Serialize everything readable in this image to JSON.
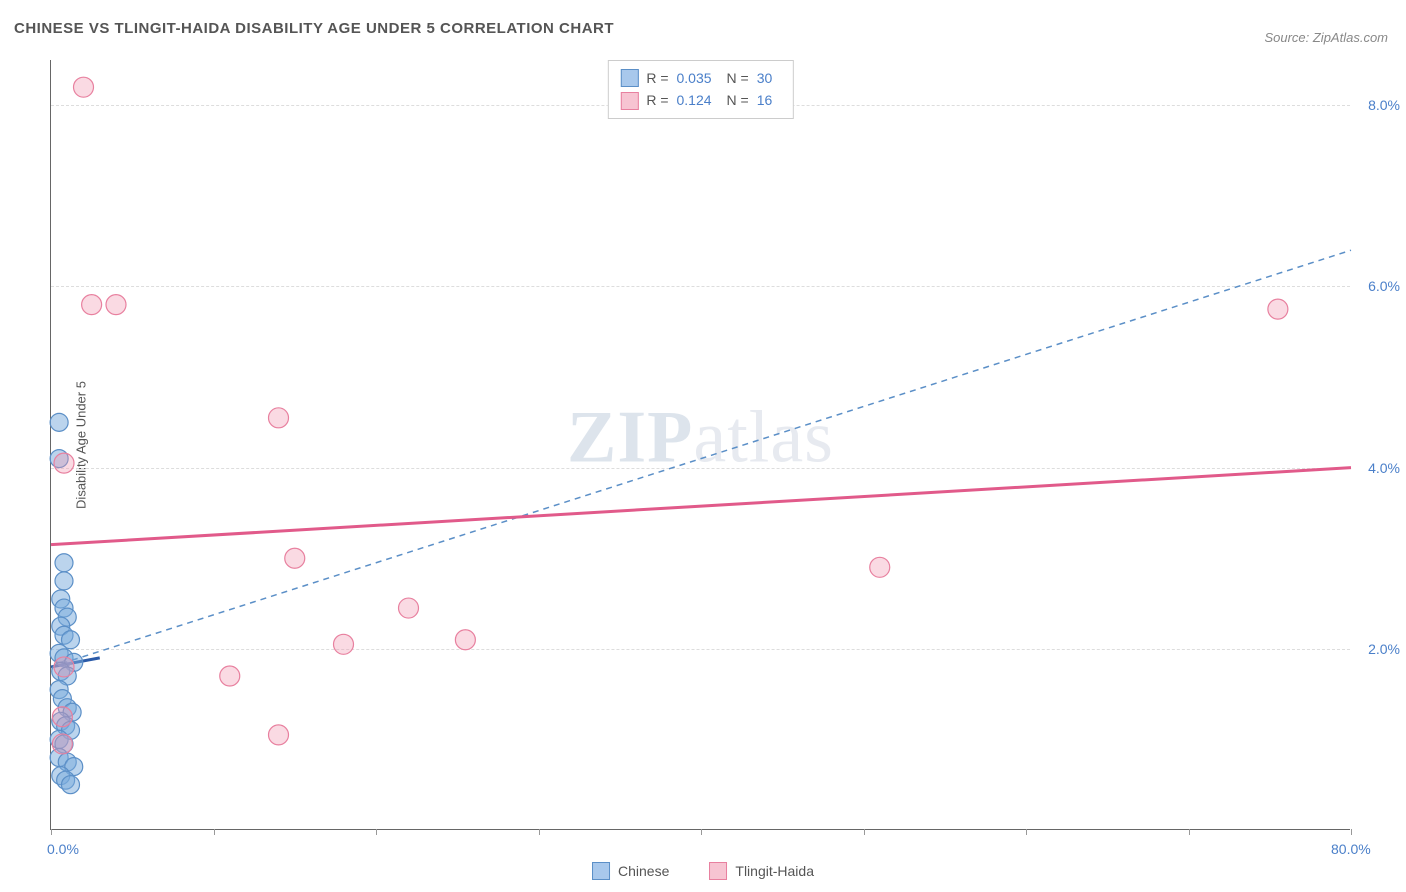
{
  "title": "CHINESE VS TLINGIT-HAIDA DISABILITY AGE UNDER 5 CORRELATION CHART",
  "source": "Source: ZipAtlas.com",
  "watermark": {
    "zip": "ZIP",
    "atlas": "atlas"
  },
  "y_axis_title": "Disability Age Under 5",
  "chart": {
    "type": "scatter",
    "background_color": "#ffffff",
    "grid_color": "#dddddd",
    "xlim": [
      0,
      80
    ],
    "ylim": [
      0,
      8.5
    ],
    "x_ticks": [
      0,
      10,
      20,
      30,
      40,
      50,
      60,
      70,
      80
    ],
    "x_labels": {
      "0": "0.0%",
      "80": "80.0%"
    },
    "y_gridlines": [
      2,
      4,
      6,
      8
    ],
    "y_labels": {
      "2": "2.0%",
      "4": "4.0%",
      "6": "6.0%",
      "8": "8.0%"
    },
    "label_color": "#4a7fc9",
    "label_fontsize": 14,
    "series": [
      {
        "name": "Chinese",
        "marker_fill": "rgba(120,170,220,0.5)",
        "marker_stroke": "#5b8fc7",
        "marker_radius": 9,
        "swatch_fill": "#a8c8ec",
        "swatch_border": "#5b8fc7",
        "trend": {
          "x1": 0,
          "y1": 1.8,
          "x2": 80,
          "y2": 6.4,
          "stroke": "#5b8fc7",
          "dash": "6,5",
          "width": 1.5
        },
        "trend_tail": {
          "x1": 0,
          "y1": 1.8,
          "x2": 3,
          "y2": 1.9,
          "stroke": "#2a5aa8",
          "width": 3
        },
        "stats": {
          "R": "0.035",
          "N": "30"
        },
        "points": [
          {
            "x": 0.5,
            "y": 4.5
          },
          {
            "x": 0.5,
            "y": 4.1
          },
          {
            "x": 0.8,
            "y": 2.95
          },
          {
            "x": 0.8,
            "y": 2.75
          },
          {
            "x": 0.6,
            "y": 2.55
          },
          {
            "x": 0.8,
            "y": 2.45
          },
          {
            "x": 1.0,
            "y": 2.35
          },
          {
            "x": 0.6,
            "y": 2.25
          },
          {
            "x": 0.8,
            "y": 2.15
          },
          {
            "x": 1.2,
            "y": 2.1
          },
          {
            "x": 0.5,
            "y": 1.95
          },
          {
            "x": 0.8,
            "y": 1.9
          },
          {
            "x": 1.4,
            "y": 1.85
          },
          {
            "x": 0.6,
            "y": 1.75
          },
          {
            "x": 1.0,
            "y": 1.7
          },
          {
            "x": 0.5,
            "y": 1.55
          },
          {
            "x": 0.7,
            "y": 1.45
          },
          {
            "x": 1.0,
            "y": 1.35
          },
          {
            "x": 1.3,
            "y": 1.3
          },
          {
            "x": 0.6,
            "y": 1.2
          },
          {
            "x": 0.9,
            "y": 1.15
          },
          {
            "x": 1.2,
            "y": 1.1
          },
          {
            "x": 0.5,
            "y": 1.0
          },
          {
            "x": 0.8,
            "y": 0.95
          },
          {
            "x": 0.5,
            "y": 0.8
          },
          {
            "x": 1.0,
            "y": 0.75
          },
          {
            "x": 1.4,
            "y": 0.7
          },
          {
            "x": 0.6,
            "y": 0.6
          },
          {
            "x": 0.9,
            "y": 0.55
          },
          {
            "x": 1.2,
            "y": 0.5
          }
        ]
      },
      {
        "name": "Tlingit-Haida",
        "marker_fill": "rgba(240,150,175,0.35)",
        "marker_stroke": "#e8809f",
        "marker_radius": 10,
        "swatch_fill": "#f7c4d2",
        "swatch_border": "#e8809f",
        "trend": {
          "x1": 0,
          "y1": 3.15,
          "x2": 80,
          "y2": 4.0,
          "stroke": "#e15a8a",
          "dash": "none",
          "width": 3
        },
        "stats": {
          "R": "0.124",
          "N": "16"
        },
        "points": [
          {
            "x": 2.0,
            "y": 8.2
          },
          {
            "x": 2.5,
            "y": 5.8
          },
          {
            "x": 4.0,
            "y": 5.8
          },
          {
            "x": 75.5,
            "y": 5.75
          },
          {
            "x": 14.0,
            "y": 4.55
          },
          {
            "x": 0.8,
            "y": 4.05
          },
          {
            "x": 15.0,
            "y": 3.0
          },
          {
            "x": 51.0,
            "y": 2.9
          },
          {
            "x": 22.0,
            "y": 2.45
          },
          {
            "x": 25.5,
            "y": 2.1
          },
          {
            "x": 18.0,
            "y": 2.05
          },
          {
            "x": 0.8,
            "y": 1.8
          },
          {
            "x": 11.0,
            "y": 1.7
          },
          {
            "x": 0.7,
            "y": 1.25
          },
          {
            "x": 14.0,
            "y": 1.05
          },
          {
            "x": 0.7,
            "y": 0.95
          }
        ]
      }
    ]
  },
  "bottom_legend": [
    {
      "label": "Chinese",
      "swatch_fill": "#a8c8ec",
      "swatch_border": "#5b8fc7"
    },
    {
      "label": "Tlingit-Haida",
      "swatch_fill": "#f7c4d2",
      "swatch_border": "#e8809f"
    }
  ]
}
